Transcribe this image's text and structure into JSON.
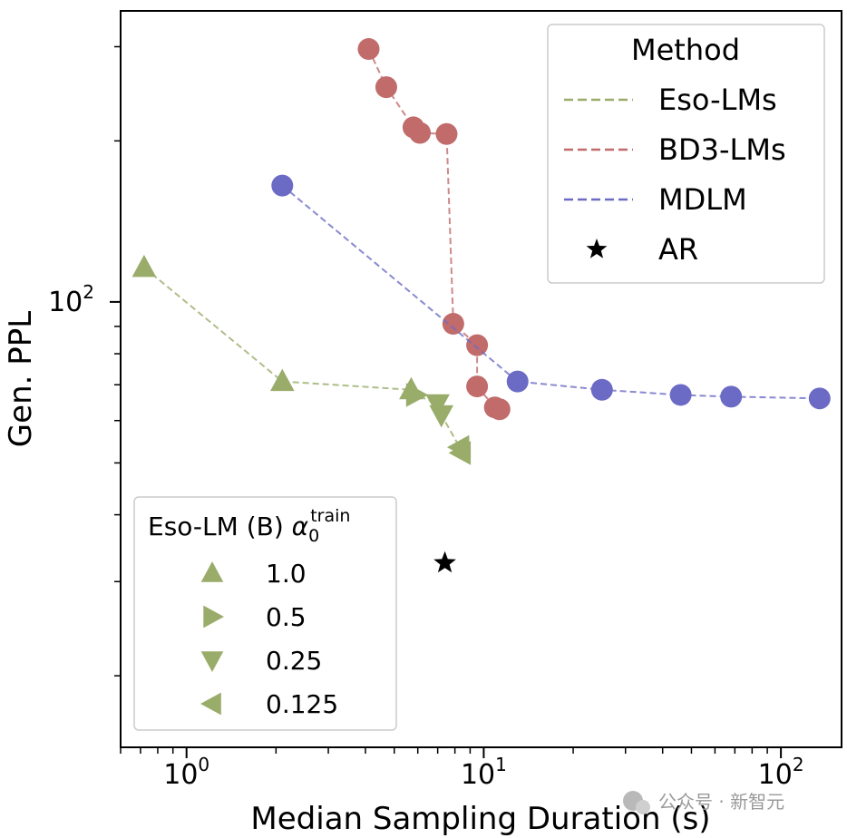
{
  "chart_data": {
    "type": "scatter",
    "xlabel": "Median Sampling Duration (s)",
    "ylabel": "Gen. PPL",
    "xscale": "log",
    "yscale": "log",
    "xlim": [
      0.6,
      160
    ],
    "ylim": [
      14.7,
      350
    ],
    "x_ticks": [
      {
        "value": 1,
        "base": "10",
        "exp": "0"
      },
      {
        "value": 10,
        "base": "10",
        "exp": "1"
      },
      {
        "value": 100,
        "base": "10",
        "exp": "2"
      }
    ],
    "y_ticks": [
      {
        "value": 100,
        "base": "10",
        "exp": "2"
      }
    ],
    "series": [
      {
        "name": "Eso-LMs",
        "color": "#9aac6a",
        "points": [
          {
            "x": 0.72,
            "y": 116,
            "marker": "triangle-up"
          },
          {
            "x": 2.1,
            "y": 71,
            "marker": "triangle-up"
          },
          {
            "x": 5.7,
            "y": 68.5,
            "marker": "triangle-up"
          },
          {
            "x": 5.9,
            "y": 67,
            "marker": "triangle-right"
          },
          {
            "x": 7.0,
            "y": 64.5,
            "marker": "triangle-down"
          },
          {
            "x": 7.2,
            "y": 61.5,
            "marker": "triangle-down"
          },
          {
            "x": 8.3,
            "y": 53.5,
            "marker": "triangle-left"
          },
          {
            "x": 8.4,
            "y": 52.2,
            "marker": "triangle-left"
          }
        ]
      },
      {
        "name": "BD3-LMs",
        "color": "#c16b6b",
        "points": [
          {
            "x": 4.1,
            "y": 297
          },
          {
            "x": 4.7,
            "y": 252
          },
          {
            "x": 5.8,
            "y": 212
          },
          {
            "x": 6.1,
            "y": 207
          },
          {
            "x": 7.5,
            "y": 206
          },
          {
            "x": 7.9,
            "y": 91
          },
          {
            "x": 9.5,
            "y": 83
          },
          {
            "x": 9.5,
            "y": 69.5
          },
          {
            "x": 10.9,
            "y": 63.5
          },
          {
            "x": 11.3,
            "y": 63
          }
        ]
      },
      {
        "name": "MDLM",
        "color": "#6b6bc6",
        "points": [
          {
            "x": 2.1,
            "y": 165
          },
          {
            "x": 13,
            "y": 71
          },
          {
            "x": 25,
            "y": 68.5
          },
          {
            "x": 46,
            "y": 67
          },
          {
            "x": 68,
            "y": 66.5
          },
          {
            "x": 135,
            "y": 66
          }
        ]
      },
      {
        "name": "AR",
        "color": "#000000",
        "points": [
          {
            "x": 7.4,
            "y": 32.5,
            "marker": "star"
          }
        ]
      }
    ],
    "legend": {
      "title": "Method",
      "position": "top-right",
      "entries": [
        {
          "label": "Eso-LMs",
          "style": "dashed",
          "color": "#9aac6a"
        },
        {
          "label": "BD3-LMs",
          "style": "dashed",
          "color": "#c16b6b"
        },
        {
          "label": "MDLM",
          "style": "dashed",
          "color": "#6b6bc6"
        },
        {
          "label": "AR",
          "style": "star",
          "color": "#000000"
        }
      ]
    },
    "legend2": {
      "title": "Eso-LM (B) ",
      "title_symbol": "α",
      "title_sub": "0",
      "title_sup": "train",
      "position": "lower-left",
      "entries": [
        {
          "label": "1.0",
          "marker": "triangle-up"
        },
        {
          "label": "0.5",
          "marker": "triangle-right"
        },
        {
          "label": "0.25",
          "marker": "triangle-down"
        },
        {
          "label": "0.125",
          "marker": "triangle-left"
        }
      ]
    }
  },
  "watermark": "公众号 · 新智元"
}
